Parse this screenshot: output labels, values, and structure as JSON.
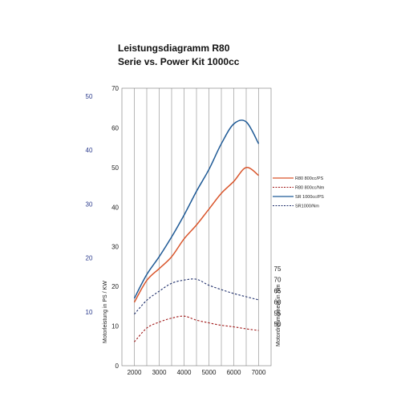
{
  "chart_data": {
    "type": "line",
    "title": "Leistungsdiagramm R80",
    "subtitle": "Serie vs. Power Kit 1000cc",
    "x": [
      2000,
      2500,
      3000,
      3500,
      4000,
      4500,
      5000,
      5500,
      6000,
      6500,
      7000
    ],
    "xlim": [
      1500,
      7500
    ],
    "x_ticks": [
      "2000",
      "3000",
      "4000",
      "5000",
      "6000",
      "7000"
    ],
    "ylim_left": [
      0,
      70
    ],
    "y_ticks_left": [
      "0",
      "10",
      "20",
      "30",
      "40",
      "50",
      "60",
      "70"
    ],
    "ylabel_left": "Motorleistung in PS / KW",
    "y_ticks_kw": [
      "10",
      "20",
      "30",
      "40",
      "50"
    ],
    "y_ticks_right": [
      "50",
      "55",
      "60",
      "65",
      "70",
      "75"
    ],
    "ylabel_right": "Motordrehmoment in Nm",
    "grid": "vertical",
    "legend_position": "right",
    "series": [
      {
        "name": "R80 800cc/PS",
        "color": "#d9552b",
        "dash": "solid",
        "values": [
          16,
          21.5,
          24.5,
          27.5,
          32,
          35.5,
          39.5,
          43.5,
          46.5,
          50,
          48
        ]
      },
      {
        "name": "R80 800cc/Nm",
        "color": "#a01818",
        "dash": "dashed",
        "values": [
          6,
          9.5,
          11,
          12,
          12.5,
          11.5,
          10.8,
          10.2,
          9.8,
          9.3,
          8.9
        ]
      },
      {
        "name": "SR 1000cc/PS",
        "color": "#1f5a96",
        "dash": "solid",
        "values": [
          17,
          23,
          27.5,
          32.5,
          38,
          44,
          49.5,
          56,
          61,
          61.5,
          56
        ]
      },
      {
        "name": "SR1000/Nm",
        "color": "#1f2f6b",
        "dash": "dashed",
        "values": [
          13,
          16.5,
          18.8,
          20.8,
          21.6,
          21.8,
          20.3,
          19.2,
          18.2,
          17.4,
          16.6
        ]
      }
    ]
  }
}
